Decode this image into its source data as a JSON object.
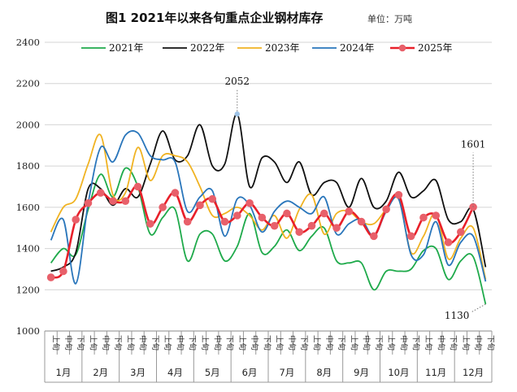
{
  "chart_data": {
    "type": "line",
    "title": "图1  2021年以来各旬重点企业钢材库存",
    "unit": "单位：万吨",
    "ylim": [
      1000,
      2400
    ],
    "yticks": [
      1000,
      1200,
      1400,
      1600,
      1800,
      2000,
      2200,
      2400
    ],
    "grid": true,
    "legend_position": "top",
    "xperiods": [
      "上旬",
      "中旬",
      "下旬"
    ],
    "months": [
      "1月",
      "2月",
      "3月",
      "4月",
      "5月",
      "6月",
      "7月",
      "8月",
      "9月",
      "10月",
      "11月",
      "12月"
    ],
    "series": [
      {
        "name": "2021年",
        "color": "#1faa4b",
        "markers": false,
        "values": [
          1330,
          1400,
          1370,
          1590,
          1760,
          1650,
          1790,
          1700,
          1470,
          1550,
          1590,
          1340,
          1470,
          1470,
          1340,
          1410,
          1570,
          1380,
          1410,
          1490,
          1390,
          1460,
          1500,
          1340,
          1330,
          1330,
          1200,
          1290,
          1290,
          1300,
          1390,
          1400,
          1250,
          1340,
          1360,
          1130
        ]
      },
      {
        "name": "2022年",
        "color": "#111111",
        "markers": false,
        "values": [
          1290,
          1310,
          1380,
          1690,
          1690,
          1610,
          1690,
          1650,
          1810,
          1970,
          1830,
          1850,
          2000,
          1800,
          1810,
          2052,
          1700,
          1840,
          1820,
          1720,
          1820,
          1660,
          1720,
          1720,
          1600,
          1740,
          1600,
          1630,
          1770,
          1650,
          1680,
          1730,
          1540,
          1530,
          1590,
          1310
        ]
      },
      {
        "name": "2023年",
        "color": "#f0b323",
        "markers": false,
        "values": [
          1480,
          1600,
          1640,
          1810,
          1950,
          1660,
          1670,
          1890,
          1730,
          1850,
          1850,
          1820,
          1700,
          1560,
          1570,
          1600,
          1560,
          1490,
          1560,
          1450,
          1590,
          1660,
          1470,
          1570,
          1580,
          1530,
          1520,
          1590,
          1640,
          1380,
          1460,
          1570,
          1350,
          1450,
          1500,
          1250
        ]
      },
      {
        "name": "2024年",
        "color": "#2a76bb",
        "markers": false,
        "values": [
          1440,
          1540,
          1230,
          1620,
          1890,
          1820,
          1950,
          1960,
          1850,
          1830,
          1820,
          1580,
          1650,
          1680,
          1460,
          1640,
          1610,
          1480,
          1580,
          1630,
          1600,
          1570,
          1650,
          1470,
          1520,
          1540,
          1460,
          1580,
          1640,
          1370,
          1370,
          1530,
          1320,
          1430,
          1460,
          1240
        ]
      },
      {
        "name": "2025年",
        "color": "#e8202a",
        "markers": true,
        "values": [
          1260,
          1290,
          1540,
          1620,
          1670,
          1630,
          1630,
          1700,
          1520,
          1600,
          1670,
          1530,
          1610,
          1640,
          1530,
          1560,
          1620,
          1550,
          1510,
          1570,
          1480,
          1510,
          1570,
          1500,
          1580,
          1530,
          1460,
          1590,
          1660,
          1460,
          1550,
          1560,
          1430,
          1480,
          1601
        ]
      }
    ],
    "annotations": [
      {
        "label": "2052",
        "series": "2022年",
        "index": 15,
        "value": 2052
      },
      {
        "label": "1601",
        "series": "2025年",
        "index": 34,
        "value": 1601
      },
      {
        "label": "1130",
        "series": "2021年",
        "index": 35,
        "value": 1130
      }
    ]
  }
}
